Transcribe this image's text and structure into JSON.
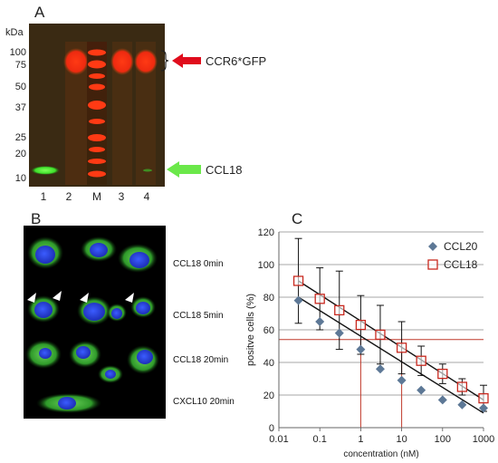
{
  "panels": {
    "a": "A",
    "b": "B",
    "c": "C"
  },
  "blot": {
    "kda_label": "kDa",
    "mw_markers": [
      "100",
      "75",
      "50",
      "37",
      "25",
      "20",
      "10"
    ],
    "lanes": [
      "1",
      "2",
      "M",
      "3",
      "4"
    ],
    "band_labels": {
      "ccr6": "CCR6*GFP",
      "ccl18": "CCL18"
    },
    "colors": {
      "ccr6_arrow": "#e00c1c",
      "ccl18_arrow": "#6be84a",
      "red_band": "#ff2a12",
      "green_band": "#3ef02a"
    }
  },
  "microscopy": {
    "labels": [
      "CCL18 0min",
      "CCL18 5min",
      "CCL18 20min",
      "CXCL10 20min"
    ]
  },
  "chart_data": {
    "type": "scatter",
    "xscale": "log",
    "xlim": [
      0.01,
      1000
    ],
    "ylim": [
      0,
      120
    ],
    "ylabel": "positve cells (%)",
    "xlabel": "concentration (nM)",
    "x_ticks": [
      "0.01",
      "0.1",
      "1",
      "10",
      "100",
      "1000"
    ],
    "y_ticks": [
      "0",
      "20",
      "40",
      "60",
      "80",
      "100",
      "120"
    ],
    "grid": true,
    "legend_position": "top-right",
    "series": [
      {
        "name": "CCL20",
        "marker": "diamond",
        "color": "#5d7896",
        "x": [
          0.03,
          0.1,
          0.3,
          1,
          3,
          10,
          30,
          100,
          300,
          1000
        ],
        "y": [
          78,
          65,
          58,
          48,
          36,
          29,
          23,
          17,
          14,
          12
        ]
      },
      {
        "name": "CCL18",
        "marker": "square-open",
        "color": "#c8281e",
        "x": [
          0.03,
          0.1,
          0.3,
          1,
          3,
          10,
          30,
          100,
          300,
          1000
        ],
        "y": [
          90,
          79,
          72,
          63,
          57,
          49,
          41,
          33,
          25,
          18
        ],
        "y_err": [
          26,
          19,
          24,
          18,
          18,
          16,
          9,
          6,
          5,
          8
        ]
      }
    ],
    "trendlines": [
      {
        "series": "CCL20",
        "color": "#111111",
        "from": [
          0.03,
          80
        ],
        "to": [
          1000,
          9
        ]
      },
      {
        "series": "CCL18",
        "color": "#111111",
        "from": [
          0.03,
          90
        ],
        "to": [
          1000,
          17
        ]
      }
    ],
    "reference_lines": {
      "color": "#c0392b",
      "horizontal_y": 54,
      "vertical_x": [
        1,
        10
      ]
    }
  }
}
